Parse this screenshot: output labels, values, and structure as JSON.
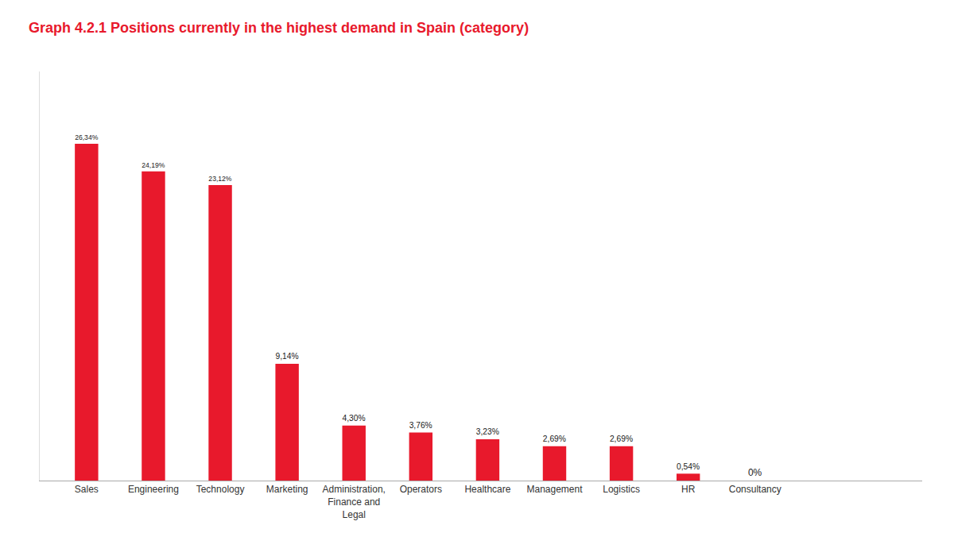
{
  "chart_data": {
    "type": "bar",
    "title": "Graph 4.2.1 Positions currently in the highest demand in Spain (category)",
    "categories": [
      "Sales",
      "Engineering",
      "Technology",
      "Marketing",
      "Administration,\nFinance and\nLegal",
      "Operators",
      "Healthcare",
      "Management",
      "Logistics",
      "HR",
      "Consultancy"
    ],
    "values": [
      26.34,
      24.19,
      23.12,
      9.14,
      4.3,
      3.76,
      3.23,
      2.69,
      2.69,
      0.54,
      0.0
    ],
    "value_labels": [
      "26,34%",
      "24,19%",
      "23,12%",
      "9,14%",
      "4,30%",
      "3,76%",
      "3,23%",
      "2,69%",
      "2,69%",
      "0,54%",
      "0%"
    ],
    "data_labels": true,
    "color": "#e8192c",
    "ylim": [
      0,
      32
    ],
    "grid": false,
    "tick_labels": "x"
  }
}
